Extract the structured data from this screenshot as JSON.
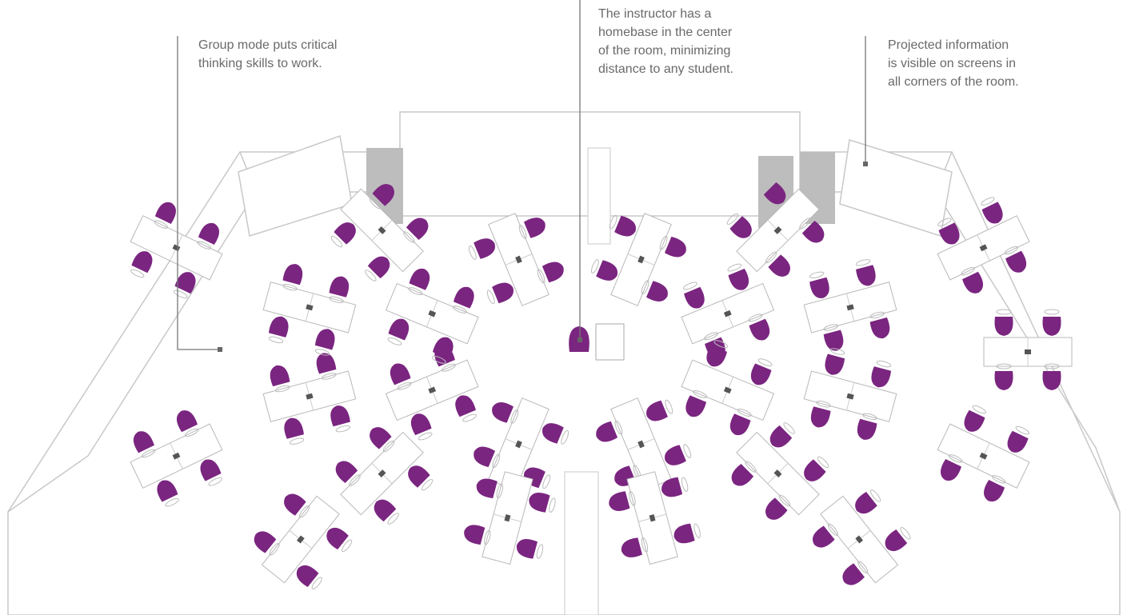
{
  "annotations": [
    {
      "lines": [
        "Group mode puts critical",
        "thinking skills to work."
      ]
    },
    {
      "lines": [
        "The instructor has a",
        "homebase in the center",
        "of the room, minimizing",
        "distance to any student."
      ]
    },
    {
      "lines": [
        "Projected information",
        "is visible on screens in",
        "all corners of the room."
      ]
    }
  ]
}
